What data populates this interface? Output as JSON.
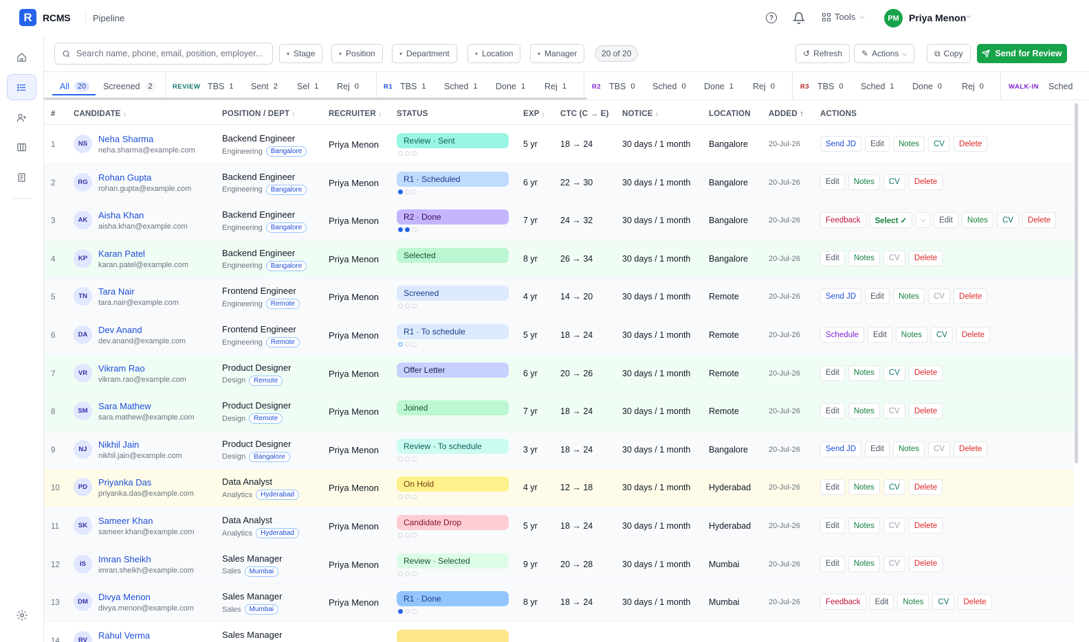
{
  "app": {
    "logo_letter": "R",
    "name": "RCMS",
    "page": "Pipeline"
  },
  "topbar": {
    "tools_label": "Tools",
    "user_initials": "PM",
    "user_name": "Priya Menon"
  },
  "filters": {
    "search_placeholder": "Search name, phone, email, position, employer...",
    "stage": "Stage",
    "position": "Position",
    "department": "Department",
    "location": "Location",
    "manager": "Manager",
    "count": "20 of 20",
    "refresh": "Refresh",
    "actions": "Actions",
    "copy": "Copy",
    "send_for_review": "Send for Review"
  },
  "stage_tabs": {
    "all": {
      "label": "All",
      "n": "20"
    },
    "screened": {
      "label": "Screened",
      "n": "2"
    },
    "review": {
      "group": "REVIEW",
      "tbs": "1",
      "sent": "2",
      "sel": "1",
      "rej": "0"
    },
    "r1": {
      "group": "R1",
      "tbs": "1",
      "sched": "1",
      "done": "1",
      "rej": "1"
    },
    "r2": {
      "group": "R2",
      "tbs": "0",
      "sched": "0",
      "done": "1",
      "rej": "0"
    },
    "r3": {
      "group": "R3",
      "tbs": "0",
      "sched": "1",
      "done": "0",
      "rej": "0"
    },
    "walkin": {
      "group": "WALK-IN",
      "sched": "Sched"
    },
    "labels": {
      "tbs": "TBS",
      "sent": "Sent",
      "sel": "Sel",
      "rej": "Rej",
      "sched": "Sched",
      "done": "Done"
    }
  },
  "columns": {
    "num": "#",
    "candidate": "CANDIDATE",
    "position": "POSITION / DEPT",
    "recruiter": "RECRUITER",
    "status": "STATUS",
    "exp": "EXP",
    "ctc": "CTC (C → E)",
    "notice": "NOTICE",
    "location": "LOCATION",
    "added": "ADDED ↑",
    "actions": "ACTIONS"
  },
  "rows": [
    {
      "n": "1",
      "initials": "NS",
      "name": "Neha Sharma",
      "email": "neha.sharma@example.com",
      "position": "Backend Engineer",
      "dept": "Engineering",
      "loc_tag": "Bangalore",
      "recruiter": "Priya Menon",
      "status": "Review · Sent",
      "exp": "5 yr",
      "ctc": "18 → 24",
      "notice": "30 days / 1 month",
      "location": "Bangalore",
      "added": "20-Jul-26"
    },
    {
      "n": "2",
      "initials": "RG",
      "name": "Rohan Gupta",
      "email": "rohan.gupta@example.com",
      "position": "Backend Engineer",
      "dept": "Engineering",
      "loc_tag": "Bangalore",
      "recruiter": "Priya Menon",
      "status": "R1 · Scheduled",
      "exp": "6 yr",
      "ctc": "22 → 30",
      "notice": "30 days / 1 month",
      "location": "Bangalore",
      "added": "20-Jul-26"
    },
    {
      "n": "3",
      "initials": "AK",
      "name": "Aisha Khan",
      "email": "aisha.khan@example.com",
      "position": "Backend Engineer",
      "dept": "Engineering",
      "loc_tag": "Bangalore",
      "recruiter": "Priya Menon",
      "status": "R2 · Done",
      "exp": "7 yr",
      "ctc": "24 → 32",
      "notice": "30 days / 1 month",
      "location": "Bangalore",
      "added": "20-Jul-26"
    },
    {
      "n": "4",
      "initials": "KP",
      "name": "Karan Patel",
      "email": "karan.patel@example.com",
      "position": "Backend Engineer",
      "dept": "Engineering",
      "loc_tag": "Bangalore",
      "recruiter": "Priya Menon",
      "status": "Selected",
      "exp": "8 yr",
      "ctc": "26 → 34",
      "notice": "30 days / 1 month",
      "location": "Bangalore",
      "added": "20-Jul-26"
    },
    {
      "n": "5",
      "initials": "TN",
      "name": "Tara Nair",
      "email": "tara.nair@example.com",
      "position": "Frontend Engineer",
      "dept": "Engineering",
      "loc_tag": "Remote",
      "recruiter": "Priya Menon",
      "status": "Screened",
      "exp": "4 yr",
      "ctc": "14 → 20",
      "notice": "30 days / 1 month",
      "location": "Remote",
      "added": "20-Jul-26"
    },
    {
      "n": "6",
      "initials": "DA",
      "name": "Dev Anand",
      "email": "dev.anand@example.com",
      "position": "Frontend Engineer",
      "dept": "Engineering",
      "loc_tag": "Remote",
      "recruiter": "Priya Menon",
      "status": "R1 · To schedule",
      "exp": "5 yr",
      "ctc": "18 → 24",
      "notice": "30 days / 1 month",
      "location": "Remote",
      "added": "20-Jul-26"
    },
    {
      "n": "7",
      "initials": "VR",
      "name": "Vikram Rao",
      "email": "vikram.rao@example.com",
      "position": "Product Designer",
      "dept": "Design",
      "loc_tag": "Remote",
      "recruiter": "Priya Menon",
      "status": "Offer Letter",
      "exp": "6 yr",
      "ctc": "20 → 26",
      "notice": "30 days / 1 month",
      "location": "Remote",
      "added": "20-Jul-26"
    },
    {
      "n": "8",
      "initials": "SM",
      "name": "Sara Mathew",
      "email": "sara.mathew@example.com",
      "position": "Product Designer",
      "dept": "Design",
      "loc_tag": "Remote",
      "recruiter": "Priya Menon",
      "status": "Joined",
      "exp": "7 yr",
      "ctc": "18 → 24",
      "notice": "30 days / 1 month",
      "location": "Remote",
      "added": "20-Jul-26"
    },
    {
      "n": "9",
      "initials": "NJ",
      "name": "Nikhil Jain",
      "email": "nikhil.jain@example.com",
      "position": "Product Designer",
      "dept": "Design",
      "loc_tag": "Bangalore",
      "recruiter": "Priya Menon",
      "status": "Review · To schedule",
      "exp": "3 yr",
      "ctc": "18 → 24",
      "notice": "30 days / 1 month",
      "location": "Bangalore",
      "added": "20-Jul-26"
    },
    {
      "n": "10",
      "initials": "PD",
      "name": "Priyanka Das",
      "email": "priyanka.das@example.com",
      "position": "Data Analyst",
      "dept": "Analytics",
      "loc_tag": "Hyderabad",
      "recruiter": "Priya Menon",
      "status": "On Hold",
      "exp": "4 yr",
      "ctc": "12 → 18",
      "notice": "30 days / 1 month",
      "location": "Hyderabad",
      "added": "20-Jul-26"
    },
    {
      "n": "11",
      "initials": "SK",
      "name": "Sameer Khan",
      "email": "sameer.khan@example.com",
      "position": "Data Analyst",
      "dept": "Analytics",
      "loc_tag": "Hyderabad",
      "recruiter": "Priya Menon",
      "status": "Candidate Drop",
      "exp": "5 yr",
      "ctc": "18 → 24",
      "notice": "30 days / 1 month",
      "location": "Hyderabad",
      "added": "20-Jul-26"
    },
    {
      "n": "12",
      "initials": "IS",
      "name": "Imran Sheikh",
      "email": "imran.sheikh@example.com",
      "position": "Sales Manager",
      "dept": "Sales",
      "loc_tag": "Mumbai",
      "recruiter": "Priya Menon",
      "status": "Review · Selected",
      "exp": "9 yr",
      "ctc": "20 → 28",
      "notice": "30 days / 1 month",
      "location": "Mumbai",
      "added": "20-Jul-26"
    },
    {
      "n": "13",
      "initials": "DM",
      "name": "Divya Menon",
      "email": "divya.menon@example.com",
      "position": "Sales Manager",
      "dept": "Sales",
      "loc_tag": "Mumbai",
      "recruiter": "Priya Menon",
      "status": "R1 · Done",
      "exp": "8 yr",
      "ctc": "18 → 24",
      "notice": "30 days / 1 month",
      "location": "Mumbai",
      "added": "20-Jul-26"
    },
    {
      "n": "14",
      "initials": "RV",
      "name": "Rahul Verma",
      "email": "",
      "position": "Sales Manager",
      "dept": "",
      "loc_tag": "",
      "recruiter": "",
      "status": "",
      "exp": "",
      "ctc": "",
      "notice": "",
      "location": "",
      "added": ""
    }
  ],
  "action_labels": {
    "send_jd": "Send JD",
    "edit": "Edit",
    "notes": "Notes",
    "cv": "CV",
    "delete": "Delete",
    "feedback": "Feedback",
    "select": "Select ✓",
    "schedule": "Schedule"
  },
  "colors": {
    "primary": "#2563eb",
    "send_for_review": "#16a34a",
    "avatar_top": "#16a34a"
  }
}
